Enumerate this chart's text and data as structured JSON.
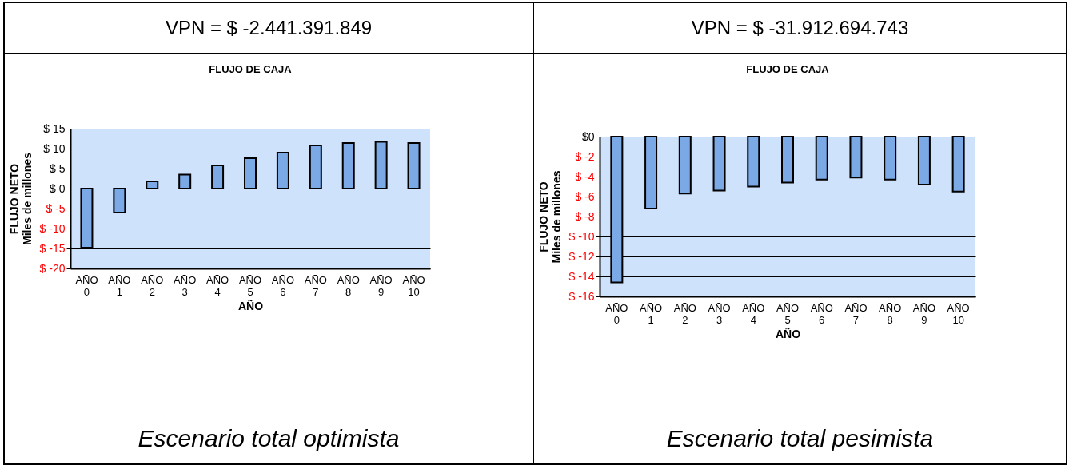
{
  "chart_data": [
    {
      "type": "bar",
      "title": "FLUJO DE CAJA",
      "xlabel": "AÑO",
      "ylabel": "FLUJO NETO\nMiles de millones",
      "annotations": [
        "VPN = $ -2.441.391.849",
        "Escenario total optimista"
      ],
      "categories": [
        "AÑO 0",
        "AÑO 1",
        "AÑO 2",
        "AÑO 3",
        "AÑO 4",
        "AÑO 5",
        "AÑO 6",
        "AÑO 7",
        "AÑO 8",
        "AÑO 9",
        "AÑO 10"
      ],
      "values": [
        -14.8,
        -6,
        1.8,
        3.5,
        5.8,
        7.6,
        9,
        10.8,
        11.4,
        11.7,
        11.4
      ],
      "color": "#7aa9e6",
      "ylim": [
        -20,
        15
      ],
      "yticks": [
        {
          "value": -20,
          "label": "$ -20"
        },
        {
          "value": -15,
          "label": "$ -15"
        },
        {
          "value": -10,
          "label": "$ -10"
        },
        {
          "value": -5,
          "label": "$ -5"
        },
        {
          "value": 0,
          "label": "$ 0"
        },
        {
          "value": 5,
          "label": "$ 5"
        },
        {
          "value": 10,
          "label": "$ 10"
        },
        {
          "value": 15,
          "label": "$ 15"
        }
      ],
      "grid": "y"
    },
    {
      "type": "bar",
      "title": "FLUJO DE CAJA",
      "xlabel": "AÑO",
      "ylabel": "FLUJO NETO\nMiles de millones",
      "annotations": [
        "VPN = $ -31.912.694.743",
        "Escenario total pesimista"
      ],
      "categories": [
        "AÑO 0",
        "AÑO 1",
        "AÑO 2",
        "AÑO 3",
        "AÑO 4",
        "AÑO 5",
        "AÑO 6",
        "AÑO 7",
        "AÑO 8",
        "AÑO 9",
        "AÑO 10"
      ],
      "values": [
        -14.6,
        -7.2,
        -5.7,
        -5.4,
        -5,
        -4.6,
        -4.3,
        -4.1,
        -4.3,
        -4.8,
        -5.5
      ],
      "color": "#7aa9e6",
      "ylim": [
        -16,
        0
      ],
      "yticks": [
        {
          "value": -16,
          "label": "$ -16"
        },
        {
          "value": -14,
          "label": "$ -14"
        },
        {
          "value": -12,
          "label": "$ -12"
        },
        {
          "value": -10,
          "label": "$ -10"
        },
        {
          "value": -8,
          "label": "$ -8"
        },
        {
          "value": -6,
          "label": "$ -6"
        },
        {
          "value": -4,
          "label": "$ -4"
        },
        {
          "value": -2,
          "label": "$ -2"
        },
        {
          "value": 0,
          "label": "$0"
        }
      ],
      "grid": "y"
    }
  ]
}
